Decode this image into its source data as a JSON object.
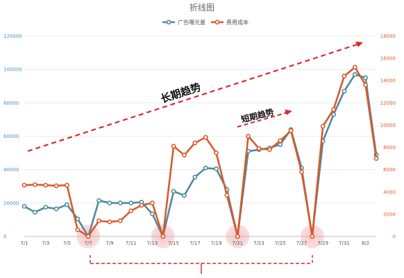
{
  "chart_data": {
    "type": "line",
    "title": "折线图",
    "categories": [
      "7/1",
      "7/2",
      "7/3",
      "7/4",
      "7/5",
      "7/6",
      "7/7",
      "7/8",
      "7/9",
      "7/10",
      "7/11",
      "7/12",
      "7/13",
      "7/14",
      "7/15",
      "7/16",
      "7/17",
      "7/18",
      "7/19",
      "7/20",
      "7/21",
      "7/22",
      "7/23",
      "7/24",
      "7/25",
      "7/26",
      "7/27",
      "7/28",
      "7/29",
      "7/30",
      "7/31",
      "8/1",
      "8/2",
      "8/3"
    ],
    "x_tick_labels": [
      "7/1",
      "7/3",
      "7/5",
      "7/7",
      "7/9",
      "7/11",
      "7/13",
      "7/15",
      "7/17",
      "7/19",
      "7/21",
      "7/23",
      "7/25",
      "7/27",
      "7/29",
      "7/31",
      "8/2"
    ],
    "series": [
      {
        "name": "广告曝光量",
        "axis": "left",
        "color": "#4f8a99",
        "values": [
          18000,
          14500,
          17500,
          16500,
          19000,
          10500,
          0,
          21500,
          20000,
          20000,
          20000,
          20500,
          13500,
          0,
          27000,
          24500,
          35500,
          41000,
          40500,
          28000,
          0,
          51000,
          52000,
          53000,
          55000,
          64000,
          41000,
          0,
          57000,
          73000,
          87000,
          97000,
          95000,
          49000
        ]
      },
      {
        "name": "费用成本",
        "axis": "right",
        "color": "#d95a2b",
        "values": [
          4600,
          4650,
          4600,
          4550,
          4600,
          600,
          0,
          1400,
          1300,
          1400,
          2300,
          2800,
          3000,
          0,
          8100,
          7300,
          8400,
          8900,
          7500,
          3700,
          0,
          9000,
          7900,
          7800,
          8600,
          9500,
          5800,
          0,
          9900,
          11400,
          14400,
          15200,
          13600,
          7000
        ]
      }
    ],
    "y_left": {
      "min": 0,
      "max": 120000,
      "ticks": [
        0,
        20000,
        40000,
        60000,
        80000,
        100000,
        120000
      ]
    },
    "y_right": {
      "min": 0,
      "max": 18000,
      "ticks": [
        0,
        2000,
        4000,
        6000,
        8000,
        10000,
        12000,
        14000,
        16000,
        18000
      ]
    },
    "left_axis_color": "#4a90b8",
    "right_axis_color": "#d95a2b",
    "grid": true,
    "legend_position": "top-center",
    "highlight_dates": [
      "7/7",
      "7/14",
      "7/21",
      "7/28"
    ],
    "annotations": {
      "long_term": "长期趋势",
      "short_term": "短期趋势"
    }
  }
}
